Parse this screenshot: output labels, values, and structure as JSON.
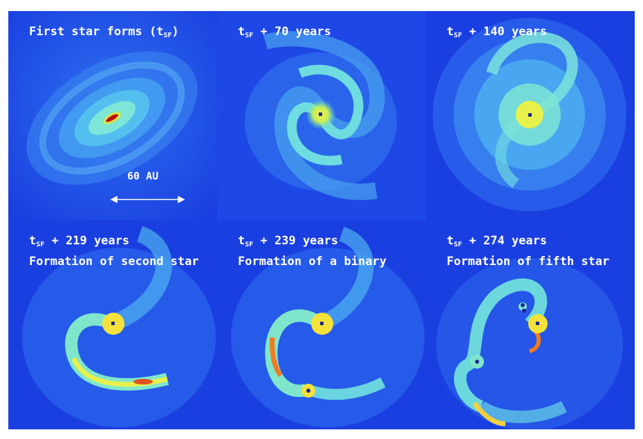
{
  "panels": [
    {
      "prefix": "First star forms (t",
      "sub": "SF",
      "suffix": ")",
      "caption": ""
    },
    {
      "prefix": "t",
      "sub": "SF",
      "suffix": " + 70 years",
      "caption": ""
    },
    {
      "prefix": "t",
      "sub": "SF",
      "suffix": " + 140 years",
      "caption": ""
    },
    {
      "prefix": "t",
      "sub": "SF",
      "suffix": " + 219 years",
      "caption": "Formation of second star"
    },
    {
      "prefix": "t",
      "sub": "SF",
      "suffix": " + 239 years",
      "caption": "Formation of a binary"
    },
    {
      "prefix": "t",
      "sub": "SF",
      "suffix": " + 274 years",
      "caption": "Formation of fifth star"
    }
  ],
  "scale_bar": {
    "label": "60 AU"
  },
  "colors": {
    "background": "#1a3fe0",
    "text": "#ffffff",
    "hot": "#d8201c",
    "warm": "#f4e23a",
    "cool": "#3fe0d0"
  }
}
